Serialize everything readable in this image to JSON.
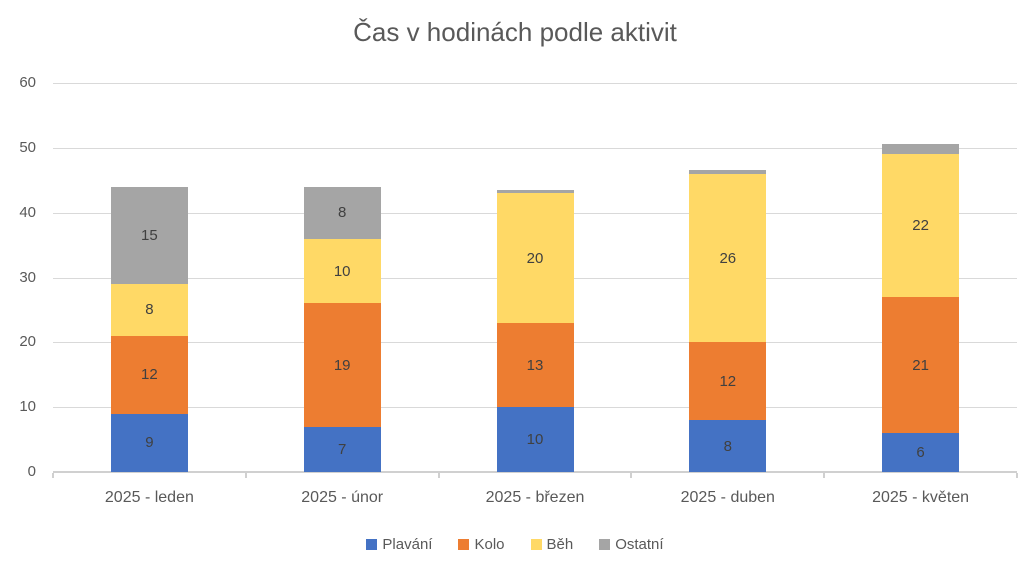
{
  "chart_data": {
    "type": "bar",
    "stacked": true,
    "title": "Čas v hodinách podle aktivit",
    "categories": [
      "2025 - leden",
      "2025 - únor",
      "2025 - březen",
      "2025 - duben",
      "2025 - květen"
    ],
    "series": [
      {
        "key": "plavani",
        "name": "Plavání",
        "color": "#4472C4",
        "values": [
          9,
          7,
          10,
          8,
          6
        ],
        "labels": [
          "9",
          "7",
          "10",
          "8",
          "6"
        ]
      },
      {
        "key": "kolo",
        "name": "Kolo",
        "color": "#ED7D31",
        "values": [
          12,
          19,
          13,
          12,
          21
        ],
        "labels": [
          "12",
          "19",
          "13",
          "12",
          "21"
        ]
      },
      {
        "key": "beh",
        "name": "Běh",
        "color": "#FFD966",
        "values": [
          8,
          10,
          20,
          26,
          22
        ],
        "labels": [
          "8",
          "10",
          "20",
          "26",
          "22"
        ]
      },
      {
        "key": "ostatni",
        "name": "Ostatní",
        "color": "#A5A5A5",
        "values": [
          15,
          8,
          0.5,
          0.6,
          1.6
        ],
        "labels": [
          "15",
          "8",
          "",
          "",
          ""
        ]
      }
    ],
    "xlabel": "",
    "ylabel": "",
    "ylim": [
      0,
      60
    ],
    "yticks": [
      0,
      10,
      20,
      30,
      40,
      50,
      60
    ],
    "grid": true,
    "legend_position": "bottom"
  },
  "colors": {
    "title_text": "#595959",
    "axis_text": "#595959",
    "data_label_text": "#404040",
    "gridline": "#D9D9D9",
    "axis_line": "#D0D0D0",
    "background": "#FFFFFF"
  }
}
